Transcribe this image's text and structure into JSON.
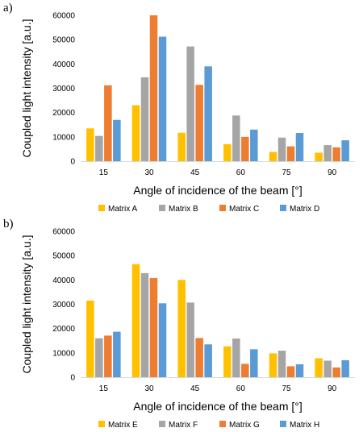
{
  "chart_data": [
    {
      "panel_label": "a)",
      "type": "bar",
      "categories": [
        "15",
        "30",
        "45",
        "60",
        "75",
        "90"
      ],
      "xlabel": "Angle of incidence of the beam [°]",
      "ylabel": "Coupled light intensity [a.u.]",
      "ylim": [
        0,
        60000
      ],
      "yticks": [
        "0",
        "10000",
        "20000",
        "30000",
        "40000",
        "50000",
        "60000"
      ],
      "grid": false,
      "legend_position": "bottom",
      "series": [
        {
          "name": "Matrix A",
          "color": "#FFC000",
          "values": [
            13500,
            23000,
            11700,
            7000,
            3800,
            3500
          ]
        },
        {
          "name": "Matrix B",
          "color": "#A5A5A5",
          "values": [
            10400,
            34500,
            47200,
            18800,
            9700,
            6600
          ]
        },
        {
          "name": "Matrix C",
          "color": "#ED7D31",
          "values": [
            31200,
            60000,
            31400,
            10000,
            6100,
            5700
          ]
        },
        {
          "name": "Matrix D",
          "color": "#5B9BD5",
          "values": [
            17000,
            51200,
            39000,
            13000,
            11600,
            8600
          ]
        }
      ]
    },
    {
      "panel_label": "b)",
      "type": "bar",
      "categories": [
        "15",
        "30",
        "45",
        "60",
        "75",
        "90"
      ],
      "xlabel": "Angle of incidence of the beam [°]",
      "ylabel": "Coupled light intensity [a.u.]",
      "ylim": [
        0,
        60000
      ],
      "yticks": [
        "0",
        "10000",
        "20000",
        "30000",
        "40000",
        "50000",
        "60000"
      ],
      "grid": false,
      "legend_position": "bottom",
      "series": [
        {
          "name": "Matrix E",
          "color": "#FFC000",
          "values": [
            31500,
            46500,
            40000,
            12700,
            9800,
            7800
          ]
        },
        {
          "name": "Matrix F",
          "color": "#A5A5A5",
          "values": [
            16000,
            42800,
            30700,
            15900,
            10900,
            6800
          ]
        },
        {
          "name": "Matrix G",
          "color": "#ED7D31",
          "values": [
            17100,
            40800,
            16100,
            5500,
            4500,
            4000
          ]
        },
        {
          "name": "Matrix H",
          "color": "#5B9BD5",
          "values": [
            18700,
            30400,
            13500,
            11500,
            5300,
            7000
          ]
        }
      ]
    }
  ]
}
